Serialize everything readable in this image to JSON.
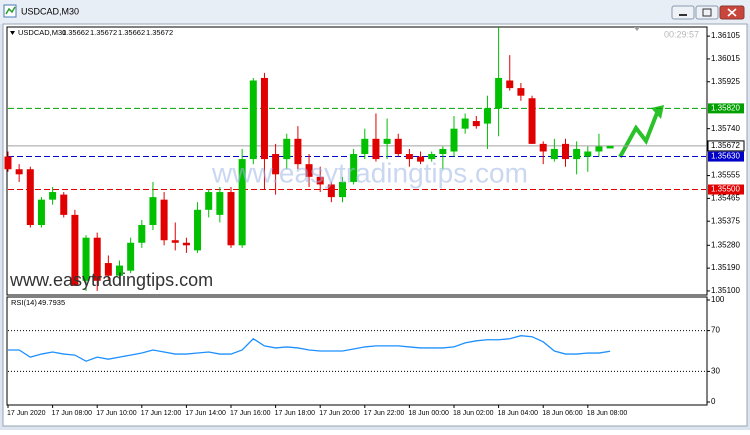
{
  "window": {
    "title": "USDCAD,M30"
  },
  "chart_data": [
    {
      "type": "candlestick",
      "symbol": "USDCAD,M30",
      "ohlc_header": [
        1.35662,
        1.35672,
        1.35662,
        1.35672
      ],
      "timer": "00:29:57",
      "watermarks": [
        "www.easytradingtips.com",
        "www.easytradingtips.com"
      ],
      "up_color": "#00c000",
      "down_color": "#e00000",
      "categories": [
        "17 Jun 2020",
        null,
        null,
        null,
        "17 Jun 08:00",
        null,
        null,
        null,
        "17 Jun 10:00",
        null,
        null,
        null,
        "17 Jun 12:00",
        null,
        null,
        null,
        "17 Jun 14:00",
        null,
        null,
        null,
        "17 Jun 16:00",
        null,
        null,
        null,
        "17 Jun 18:00",
        null,
        null,
        null,
        "17 Jun 20:00",
        null,
        null,
        null,
        "17 Jun 22:00",
        null,
        null,
        null,
        "18 Jun 00:00",
        null,
        null,
        null,
        "18 Jun 02:00",
        null,
        null,
        null,
        "18 Jun 04:00",
        null,
        null,
        null,
        "18 Jun 06:00",
        null,
        null,
        null,
        "18 Jun 08:00",
        null,
        null
      ],
      "open": [
        1.3563,
        1.3558,
        1.3558,
        1.3536,
        1.3546,
        1.3548,
        1.354,
        1.3514,
        1.3531,
        1.3521,
        1.3516,
        1.3518,
        1.3529,
        1.3536,
        1.3546,
        1.353,
        1.3529,
        1.3526,
        1.3542,
        1.354,
        1.3549,
        1.3528,
        1.3562,
        1.3594,
        1.3564,
        1.3562,
        1.357,
        1.356,
        1.3555,
        1.3552,
        1.3547,
        1.3553,
        1.3564,
        1.357,
        1.3568,
        1.357,
        1.3564,
        1.3563,
        1.3562,
        1.3564,
        1.3565,
        1.3574,
        1.3577,
        1.3576,
        1.3582,
        1.3593,
        1.359,
        1.3586,
        1.3568,
        1.3562,
        1.3568,
        1.3562,
        1.3563,
        1.3565,
        1.35662
      ],
      "high": [
        1.3565,
        1.356,
        1.3559,
        1.3547,
        1.3551,
        1.3549,
        1.3542,
        1.3532,
        1.3533,
        1.3524,
        1.3522,
        1.3531,
        1.3538,
        1.3553,
        1.3549,
        1.3537,
        1.3531,
        1.3545,
        1.355,
        1.3551,
        1.3551,
        1.3566,
        1.3594,
        1.3596,
        1.3568,
        1.3572,
        1.3575,
        1.3564,
        1.3559,
        1.3553,
        1.3555,
        1.3566,
        1.3574,
        1.358,
        1.3578,
        1.3572,
        1.3566,
        1.3565,
        1.3565,
        1.3567,
        1.3579,
        1.358,
        1.3579,
        1.3587,
        1.3614,
        1.3603,
        1.3592,
        1.3587,
        1.3569,
        1.357,
        1.357,
        1.3569,
        1.3567,
        1.3572,
        1.35672
      ],
      "low": [
        1.3557,
        1.3553,
        1.3535,
        1.3535,
        1.3544,
        1.3539,
        1.3512,
        1.351,
        1.351,
        1.3514,
        1.3514,
        1.3517,
        1.3527,
        1.3534,
        1.3528,
        1.3526,
        1.3525,
        1.3525,
        1.3539,
        1.3537,
        1.3527,
        1.3527,
        1.356,
        1.355,
        1.3548,
        1.3558,
        1.3558,
        1.3551,
        1.3549,
        1.3545,
        1.3545,
        1.3552,
        1.3562,
        1.3561,
        1.3562,
        1.3563,
        1.3559,
        1.356,
        1.3561,
        1.3558,
        1.3563,
        1.3572,
        1.3574,
        1.3566,
        1.3571,
        1.3589,
        1.3585,
        1.3568,
        1.356,
        1.3561,
        1.3559,
        1.3556,
        1.3557,
        1.3563,
        1.35662
      ],
      "close": [
        1.3558,
        1.3556,
        1.3536,
        1.3546,
        1.3549,
        1.354,
        1.3512,
        1.3531,
        1.3514,
        1.3516,
        1.352,
        1.3529,
        1.3536,
        1.3547,
        1.353,
        1.3529,
        1.3528,
        1.3542,
        1.3549,
        1.3549,
        1.3528,
        1.3562,
        1.3593,
        1.3562,
        1.3556,
        1.357,
        1.356,
        1.3555,
        1.3552,
        1.3547,
        1.3553,
        1.3564,
        1.357,
        1.3562,
        1.357,
        1.3564,
        1.3562,
        1.3561,
        1.3564,
        1.3566,
        1.3574,
        1.3578,
        1.3575,
        1.3582,
        1.3594,
        1.359,
        1.3587,
        1.3568,
        1.3565,
        1.3566,
        1.3562,
        1.3566,
        1.3565,
        1.3567,
        1.35672
      ],
      "ylim": [
        1.35084,
        1.36137
      ],
      "yticks": [
        1.36105,
        1.36015,
        1.35925,
        {
          "value": 1.3574,
          "label": "1.35740"
        },
        1.35555,
        1.35465,
        1.35375,
        {
          "value": 1.3528,
          "label": "1.35280"
        },
        {
          "value": 1.3519,
          "label": "1.35190"
        },
        {
          "value": 1.351,
          "label": "1.35100"
        }
      ],
      "levels": [
        {
          "value": 1.3582,
          "label": "1.35820",
          "color": "#00a000"
        },
        {
          "value": 1.3563,
          "label": "1.35630",
          "color": "#0000c8"
        },
        {
          "value": 1.355,
          "label": "1.35500",
          "color": "#e00000"
        }
      ],
      "last_price": 1.35672
    },
    {
      "type": "line",
      "name": "RSI(14)",
      "color": "#1e90ff",
      "values": [
        51,
        51,
        44,
        47,
        49,
        47,
        46,
        40,
        44,
        42,
        44,
        46,
        48,
        51,
        49,
        47,
        47,
        48,
        49,
        47,
        47,
        51,
        62,
        55,
        53,
        54,
        53,
        51,
        50,
        50,
        50,
        52,
        54,
        55,
        55,
        55,
        54,
        53,
        53,
        53,
        54,
        58,
        60,
        61,
        61,
        62,
        65,
        64,
        59,
        50,
        47,
        47,
        48,
        48,
        49.7935
      ],
      "ylim": [
        0,
        100
      ],
      "yticks": [
        100,
        70,
        30,
        0
      ],
      "levels": [
        70,
        30
      ]
    }
  ]
}
